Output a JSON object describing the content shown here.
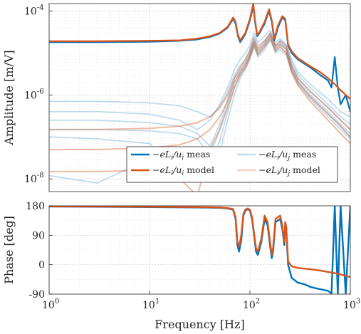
{
  "chart_data": [
    {
      "type": "line",
      "panel": "amplitude",
      "ylabel": "Amplitude [m/V]",
      "xlabel": "",
      "xscale": "log",
      "yscale": "log",
      "xlim": [
        1,
        1000
      ],
      "ylim": [
        5e-09,
        0.00015
      ],
      "xticks": [
        1,
        10,
        100,
        1000
      ],
      "yticks": [
        1e-08,
        1e-06,
        0.0001
      ],
      "ytick_labels": [
        "10",
        "10",
        "10"
      ],
      "ytick_exponents": [
        "-8",
        "-6",
        "-4"
      ],
      "grid": true,
      "legend_position": "bottom-right",
      "colors": {
        "blue": "#0072BD",
        "orange": "#D95319"
      },
      "legend": [
        {
          "label_main": "−e",
          "label_L": "L",
          "label_frac": "/u",
          "label_sub2": "i",
          "label_tail": " meas",
          "color": "#0072BD",
          "alpha": 1.0,
          "series": "direct_meas"
        },
        {
          "label_main": "−e",
          "label_L": "L",
          "label_frac": "/u",
          "label_sub2": "j",
          "label_tail": " meas",
          "color": "#0072BD",
          "alpha": 0.25,
          "series": "coupling_meas"
        },
        {
          "label_main": "−e",
          "label_L": "L",
          "label_frac": "/u",
          "label_sub2": "i",
          "label_tail": " model",
          "color": "#D95319",
          "alpha": 1.0,
          "series": "direct_model"
        },
        {
          "label_main": "−e",
          "label_L": "L",
          "label_frac": "/u",
          "label_sub2": "j",
          "label_tail": " model",
          "color": "#D95319",
          "alpha": 0.25,
          "series": "coupling_model"
        }
      ],
      "series": [
        {
          "id": "direct_meas",
          "color": "#0072BD",
          "alpha": 1.0,
          "width": 2.2,
          "x": [
            1,
            3,
            10,
            20,
            30,
            40,
            50,
            60,
            68,
            72,
            76,
            80,
            90,
            100,
            108,
            112,
            118,
            125,
            140,
            155,
            165,
            175,
            190,
            210,
            225,
            240,
            260,
            300,
            400,
            500,
            600,
            650,
            700,
            750,
            800,
            900,
            1000
          ],
          "y": [
            1.8e-05,
            1.8e-05,
            1.85e-05,
            1.95e-05,
            2.1e-05,
            2.4e-05,
            2.9e-05,
            4e-05,
            6.5e-05,
            5e-05,
            2.5e-05,
            1.8e-05,
            2.8e-05,
            6e-05,
            0.00013,
            6e-05,
            2.5e-05,
            3e-05,
            5e-05,
            0.0001,
            5.5e-05,
            2e-05,
            4e-05,
            7e-05,
            6e-05,
            1.5e-05,
            1e-05,
            7e-06,
            4.5e-06,
            3e-06,
            2.2e-06,
            1.5e-06,
            8e-06,
            1.5e-06,
            6e-07,
            1e-06,
            4e-07
          ]
        },
        {
          "id": "direct_model",
          "color": "#D95319",
          "alpha": 1.0,
          "width": 2.2,
          "x": [
            1,
            3,
            10,
            20,
            30,
            40,
            50,
            60,
            68,
            72,
            76,
            80,
            90,
            100,
            108,
            112,
            118,
            125,
            140,
            155,
            165,
            175,
            190,
            210,
            225,
            240,
            260,
            300,
            400,
            500,
            600,
            700,
            800,
            900,
            1000
          ],
          "y": [
            1.9e-05,
            1.9e-05,
            1.95e-05,
            2e-05,
            2.2e-05,
            2.5e-05,
            3e-05,
            4.2e-05,
            7e-05,
            5.5e-05,
            2.7e-05,
            2e-05,
            3e-05,
            6.5e-05,
            0.00015,
            6.5e-05,
            2.7e-05,
            3.2e-05,
            5.5e-05,
            0.00011,
            6e-05,
            2.2e-05,
            4.5e-05,
            7.5e-05,
            6.5e-05,
            1.6e-05,
            1.1e-05,
            7.5e-06,
            4.8e-06,
            3.5e-06,
            2.5e-06,
            1.8e-06,
            1.3e-06,
            1e-06,
            8e-07
          ]
        },
        {
          "id": "coupling_meas",
          "color": "#0072BD",
          "alpha": 0.25,
          "width": 1.8,
          "group": true,
          "x": [
            1,
            3,
            10,
            20,
            30,
            40,
            50,
            60,
            70,
            80,
            90,
            100,
            110,
            120,
            140,
            160,
            180,
            200,
            230,
            260,
            300,
            400,
            600,
            800,
            1000
          ],
          "lines": [
            [
              7e-07,
              7e-07,
              6.5e-07,
              5.5e-07,
              4e-07,
              3e-07,
              5e-07,
              1.2e-06,
              3e-06,
              5e-06,
              7e-06,
              1.2e-05,
              2.5e-05,
              1.5e-05,
              2e-05,
              3e-05,
              1.5e-05,
              2e-05,
              1.5e-05,
              6e-06,
              3e-06,
              1.5e-06,
              6e-07,
              3e-07,
              2e-07
            ],
            [
              4e-07,
              4e-07,
              3.5e-07,
              2.5e-07,
              1.5e-07,
              2.5e-07,
              6e-07,
              1.5e-06,
              4e-06,
              7e-06,
              1e-05,
              1.5e-05,
              3e-05,
              1.8e-05,
              2.5e-05,
              3.5e-05,
              1.8e-05,
              2.2e-05,
              1.6e-05,
              7e-06,
              3.5e-06,
              1.8e-06,
              8e-07,
              4e-07,
              3e-07
            ],
            [
              2.5e-07,
              2.5e-07,
              2.2e-07,
              1.8e-07,
              1.2e-07,
              6e-08,
              2e-07,
              8e-07,
              2.5e-06,
              4e-06,
              6e-06,
              1e-05,
              2e-05,
              1.2e-05,
              1.8e-05,
              2.8e-05,
              1.4e-05,
              1.8e-05,
              1.3e-05,
              5e-06,
              2.5e-06,
              1.2e-06,
              5e-07,
              2.5e-07,
              1.5e-07
            ],
            [
              1.5e-07,
              1.5e-07,
              1.4e-07,
              1.2e-07,
              9e-08,
              3.5e-08,
              1.5e-07,
              6e-07,
              2e-06,
              3.5e-06,
              5e-06,
              9e-06,
              1.8e-05,
              1e-05,
              1.6e-05,
              2.5e-05,
              1.2e-05,
              1.6e-05,
              1.2e-05,
              4.5e-06,
              2.2e-06,
              1e-06,
              4e-07,
              2e-07,
              1.2e-07
            ],
            [
              1e-07,
              9e-08,
              7e-08,
              1.2e-08,
              3e-08,
              2e-08,
              8e-08,
              4e-07,
              1.5e-06,
              3e-06,
              4.5e-06,
              8e-06,
              1.6e-05,
              9e-06,
              1.4e-05,
              2.2e-05,
              1.1e-05,
              1.4e-05,
              1e-05,
              4e-06,
              2e-06,
              9e-07,
              3.5e-07,
              1.8e-07,
              1e-07
            ],
            [
              1.2e-08,
              8e-09,
              3e-08,
              5e-08,
              1.5e-08,
              1e-08,
              4e-08,
              2.5e-07,
              1e-06,
              2.5e-06,
              4e-06,
              7e-06,
              1.4e-05,
              8e-06,
              1.2e-05,
              2e-05,
              1e-05,
              1.2e-05,
              9e-06,
              3.5e-06,
              1.8e-06,
              8e-07,
              3e-07,
              1.5e-07,
              9e-08
            ]
          ]
        },
        {
          "id": "coupling_model",
          "color": "#D95319",
          "alpha": 0.4,
          "width": 2.0,
          "group": true,
          "x": [
            1,
            3,
            10,
            20,
            30,
            40,
            50,
            60,
            70,
            80,
            90,
            100,
            110,
            120,
            140,
            160,
            180,
            200,
            230,
            260,
            300,
            400,
            600,
            800,
            1000
          ],
          "lines": [
            [
              1.5e-07,
              1.5e-07,
              1.6e-07,
              1.8e-07,
              2.2e-07,
              3e-07,
              5e-07,
              1e-06,
              2.5e-06,
              4.5e-06,
              7e-06,
              1.1e-05,
              2.2e-05,
              1.3e-05,
              1.9e-05,
              3e-05,
              1.5e-05,
              1.9e-05,
              1.4e-05,
              5e-06,
              2.5e-06,
              1.2e-06,
              5e-07,
              2.5e-07,
              1.5e-07
            ],
            [
              5e-08,
              5e-08,
              5.5e-08,
              6.5e-08,
              9e-08,
              1.5e-07,
              3e-07,
              7e-07,
              2e-06,
              3.5e-06,
              5.5e-06,
              9e-06,
              1.8e-05,
              1.1e-05,
              1.6e-05,
              2.6e-05,
              1.3e-05,
              1.6e-05,
              1.2e-05,
              4e-06,
              2e-06,
              9e-07,
              3.5e-07,
              1.8e-07,
              1e-07
            ],
            [
              1.5e-08,
              1.5e-08,
              1.6e-08,
              1e-08,
              4e-09,
              5e-08,
              1.5e-07,
              5e-07,
              1.5e-06,
              3e-06,
              4.5e-06,
              8e-06,
              1.5e-05,
              9e-06,
              1.4e-05,
              2.2e-05,
              1.1e-05,
              1.4e-05,
              1e-05,
              3.5e-06,
              1.7e-06,
              7e-07,
              2.5e-07,
              1.2e-07,
              7e-08
            ]
          ]
        }
      ]
    },
    {
      "type": "line",
      "panel": "phase",
      "ylabel": "Phase [deg]",
      "xlabel": "Frequency [Hz]",
      "xscale": "log",
      "xlim": [
        1,
        1000
      ],
      "ylim": [
        -90,
        180
      ],
      "yticks": [
        -90,
        0,
        90,
        180
      ],
      "ytick_labels": [
        "-90",
        "0",
        "90",
        "180"
      ],
      "xticks": [
        1,
        10,
        100,
        1000
      ],
      "xtick_labels": [
        "10",
        "10",
        "10",
        "10"
      ],
      "xtick_exponents": [
        "0",
        "1",
        "2",
        "3"
      ],
      "grid": true,
      "series": [
        {
          "id": "phase_meas",
          "color": "#0072BD",
          "alpha": 1.0,
          "width": 2.4,
          "x": [
            1,
            10,
            30,
            50,
            60,
            68,
            72,
            75,
            78,
            82,
            86,
            90,
            95,
            100,
            105,
            110,
            115,
            120,
            130,
            140,
            150,
            160,
            165,
            170,
            180,
            200,
            210,
            220,
            225,
            230,
            240,
            260,
            300,
            350,
            400,
            500,
            600,
            650,
            700,
            750,
            800,
            900,
            1000
          ],
          "y": [
            178,
            176,
            175,
            174,
            172,
            168,
            140,
            60,
            40,
            75,
            150,
            165,
            170,
            165,
            140,
            90,
            40,
            30,
            70,
            140,
            120,
            50,
            20,
            40,
            130,
            140,
            110,
            60,
            125,
            110,
            0,
            -40,
            -55,
            -60,
            -68,
            -75,
            -80,
            -88,
            180,
            -90,
            180,
            -90,
            180
          ]
        },
        {
          "id": "phase_model",
          "color": "#D95319",
          "alpha": 1.0,
          "width": 2.4,
          "x": [
            1,
            10,
            30,
            50,
            60,
            68,
            72,
            75,
            78,
            82,
            86,
            90,
            95,
            100,
            105,
            110,
            115,
            120,
            130,
            140,
            150,
            160,
            165,
            170,
            180,
            200,
            210,
            220,
            225,
            230,
            240,
            260,
            300,
            400,
            500,
            600,
            700,
            800,
            900,
            1000
          ],
          "y": [
            178,
            177,
            176,
            175,
            173,
            170,
            145,
            70,
            55,
            90,
            155,
            168,
            172,
            168,
            145,
            95,
            50,
            40,
            80,
            150,
            130,
            60,
            30,
            50,
            140,
            150,
            120,
            70,
            130,
            115,
            10,
            -5,
            -10,
            -14,
            -18,
            -22,
            -26,
            -30,
            -34,
            -38
          ]
        }
      ]
    }
  ]
}
